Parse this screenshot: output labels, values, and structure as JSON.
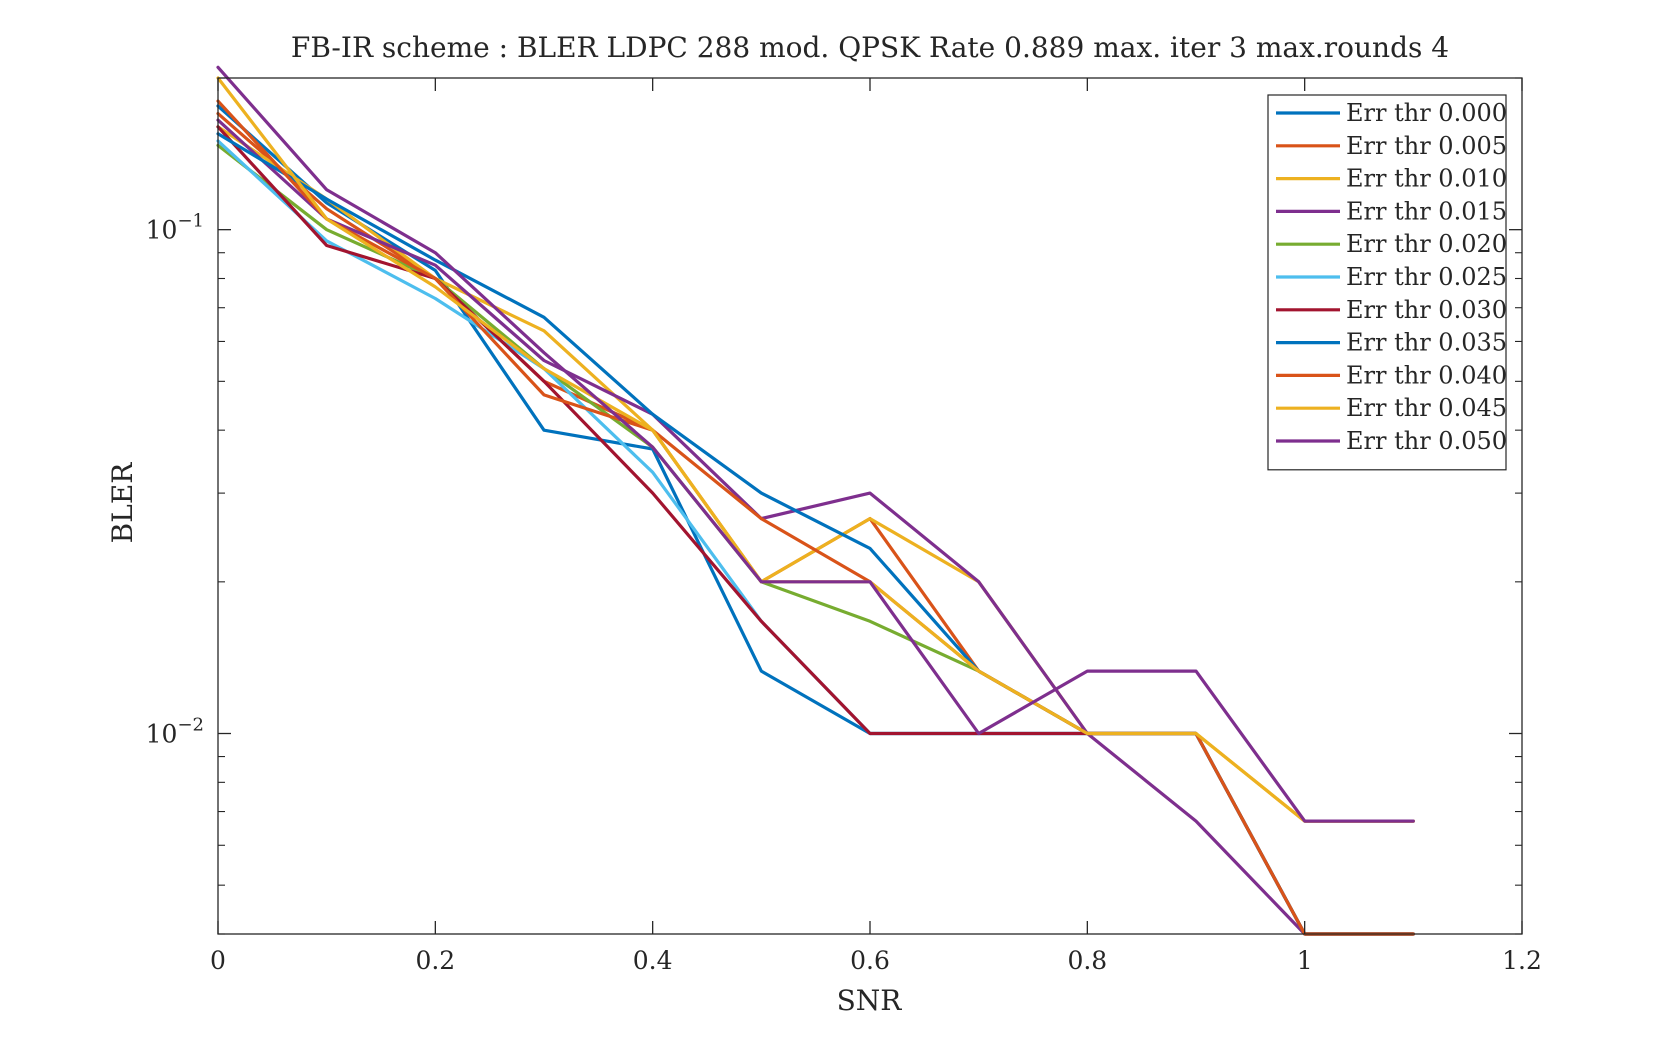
{
  "chart_data": {
    "type": "line",
    "title": "FB-IR scheme : BLER LDPC 288 mod. QPSK Rate 0.889 max. iter 3 max.rounds 4",
    "xlabel": "SNR",
    "ylabel": "BLER",
    "xlim": [
      0,
      1.2
    ],
    "ylim": [
      0.004,
      0.2
    ],
    "yscale": "log",
    "grid": false,
    "legend_position": "top-right",
    "x_ticks": [
      "0",
      "0.2",
      "0.4",
      "0.6",
      "0.8",
      "1",
      "1.2"
    ],
    "y_ticks": [
      {
        "value": 0.1,
        "base": "10",
        "exp": "−1"
      },
      {
        "value": 0.01,
        "base": "10",
        "exp": "−2"
      }
    ],
    "series": [
      {
        "name": "Err thr 0.000",
        "color": "#0072BD",
        "x": [
          0,
          0.1,
          0.2,
          0.3,
          0.4,
          0.5,
          0.6,
          0.7,
          0.8,
          0.9,
          1.0,
          1.1
        ],
        "y": [
          0.176,
          0.113,
          0.083,
          0.04,
          0.0367,
          0.0133,
          0.01,
          0.01,
          0.01,
          0.01,
          0.004,
          0.004
        ]
      },
      {
        "name": "Err thr 0.005",
        "color": "#D95319",
        "x": [
          0,
          0.1,
          0.2,
          0.3,
          0.4,
          0.5,
          0.6,
          0.7,
          0.8,
          0.9,
          1.0,
          1.1
        ],
        "y": [
          0.17,
          0.11,
          0.08,
          0.05,
          0.04,
          0.02,
          0.0267,
          0.0133,
          0.01,
          0.01,
          0.004,
          0.004
        ]
      },
      {
        "name": "Err thr 0.010",
        "color": "#EDB120",
        "x": [
          0,
          0.1,
          0.2,
          0.3,
          0.4,
          0.5,
          0.6,
          0.7,
          0.8,
          0.9,
          1.0,
          1.1
        ],
        "y": [
          0.16,
          0.115,
          0.08,
          0.063,
          0.04,
          0.02,
          0.0267,
          0.02,
          0.01,
          0.01,
          0.0067,
          0.0067
        ]
      },
      {
        "name": "Err thr 0.015",
        "color": "#7E2F8E",
        "x": [
          0,
          0.1,
          0.2,
          0.3,
          0.4,
          0.5,
          0.6,
          0.7,
          0.8,
          0.9,
          1.0,
          1.1
        ],
        "y": [
          0.165,
          0.105,
          0.085,
          0.055,
          0.043,
          0.0267,
          0.03,
          0.02,
          0.01,
          0.0067,
          0.004,
          0.004
        ]
      },
      {
        "name": "Err thr 0.020",
        "color": "#77AC30",
        "x": [
          0,
          0.1,
          0.2,
          0.3,
          0.4,
          0.5,
          0.6,
          0.7,
          0.8,
          0.9,
          1.0,
          1.1
        ],
        "y": [
          0.147,
          0.1,
          0.08,
          0.053,
          0.037,
          0.02,
          0.0167,
          0.0133,
          0.01,
          0.01,
          0.004,
          0.004
        ]
      },
      {
        "name": "Err thr 0.025",
        "color": "#4DBEEE",
        "x": [
          0,
          0.1,
          0.2,
          0.3,
          0.4,
          0.5,
          0.6,
          0.7,
          0.8,
          0.9,
          1.0,
          1.1
        ],
        "y": [
          0.15,
          0.095,
          0.073,
          0.053,
          0.033,
          0.0167,
          0.01,
          0.01,
          0.01,
          0.01,
          0.004,
          0.004
        ]
      },
      {
        "name": "Err thr 0.030",
        "color": "#A2142F",
        "x": [
          0,
          0.1,
          0.2,
          0.3,
          0.4,
          0.5,
          0.6,
          0.7,
          0.8,
          0.9,
          1.0,
          1.1
        ],
        "y": [
          0.16,
          0.093,
          0.08,
          0.05,
          0.03,
          0.0167,
          0.01,
          0.01,
          0.01,
          0.01,
          0.004,
          0.004
        ]
      },
      {
        "name": "Err thr 0.035",
        "color": "#0072BD",
        "x": [
          0,
          0.1,
          0.2,
          0.3,
          0.4,
          0.5,
          0.6,
          0.7,
          0.8,
          0.9,
          1.0,
          1.1
        ],
        "y": [
          0.155,
          0.115,
          0.087,
          0.067,
          0.043,
          0.03,
          0.0233,
          0.0133,
          0.01,
          0.01,
          0.004,
          0.004
        ]
      },
      {
        "name": "Err thr 0.040",
        "color": "#D95319",
        "x": [
          0,
          0.1,
          0.2,
          0.3,
          0.4,
          0.5,
          0.6,
          0.7,
          0.8,
          0.9,
          1.0,
          1.1
        ],
        "y": [
          0.18,
          0.105,
          0.08,
          0.047,
          0.04,
          0.0267,
          0.02,
          0.0133,
          0.01,
          0.01,
          0.004,
          0.004
        ]
      },
      {
        "name": "Err thr 0.045",
        "color": "#EDB120",
        "x": [
          0,
          0.1,
          0.2,
          0.3,
          0.4,
          0.5,
          0.6,
          0.7,
          0.8,
          0.9,
          1.0,
          1.1
        ],
        "y": [
          0.2,
          0.105,
          0.077,
          0.053,
          0.04,
          0.02,
          0.02,
          0.0133,
          0.01,
          0.01,
          0.0067,
          0.0067
        ]
      },
      {
        "name": "Err thr 0.050",
        "color": "#7E2F8E",
        "x": [
          0,
          0.1,
          0.2,
          0.3,
          0.4,
          0.5,
          0.6,
          0.7,
          0.8,
          0.9,
          1.0,
          1.1
        ],
        "y": [
          0.21,
          0.12,
          0.09,
          0.057,
          0.037,
          0.02,
          0.02,
          0.01,
          0.0133,
          0.0133,
          0.0067,
          0.0067
        ]
      }
    ]
  }
}
